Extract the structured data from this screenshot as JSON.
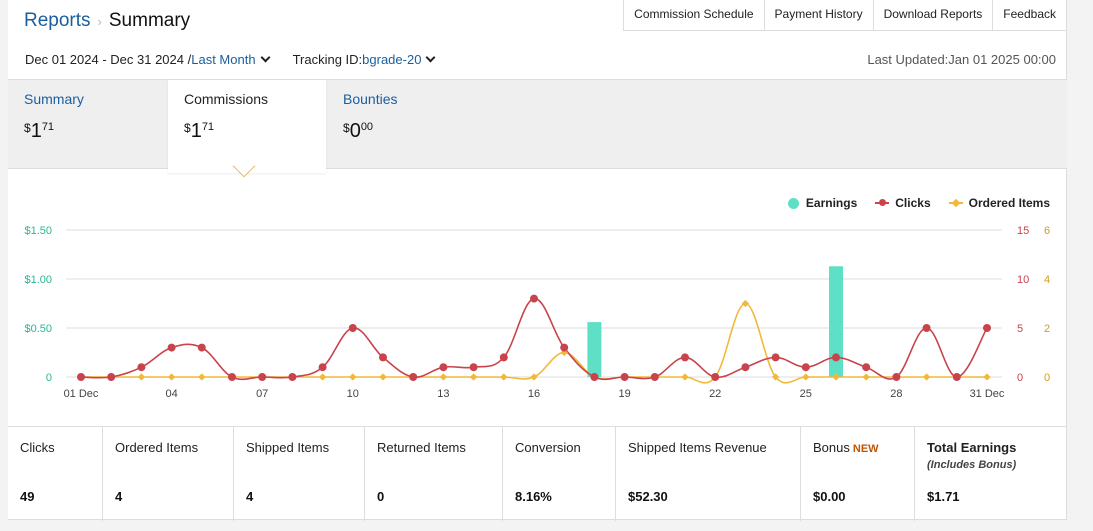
{
  "breadcrumb": {
    "parent": "Reports",
    "current": "Summary"
  },
  "top_nav": [
    "Commission Schedule",
    "Payment History",
    "Download Reports",
    "Feedback"
  ],
  "filters": {
    "date_range": "Dec 01 2024 - Dec 31 2024 /",
    "period": "Last Month",
    "tracking_label": "Tracking ID:",
    "tracking_id": "bgrade-20"
  },
  "last_updated": "Last Updated:Jan 01 2025 00:00",
  "tabs": [
    {
      "label": "Summary",
      "currency": "$",
      "whole": "1",
      "cents": "71",
      "active": false
    },
    {
      "label": "Commissions",
      "currency": "$",
      "whole": "1",
      "cents": "71",
      "active": true
    },
    {
      "label": "Bounties",
      "currency": "$",
      "whole": "0",
      "cents": "00",
      "active": false
    }
  ],
  "legend": [
    "Earnings",
    "Clicks",
    "Ordered Items"
  ],
  "colors": {
    "earnings": "#5de0c5",
    "clicks": "#c9434c",
    "ordered": "#f0b93a",
    "link": "#1a5e9e",
    "bonus_new": "#c45500"
  },
  "chart_data": {
    "type": "bar+line",
    "x": [
      "01 Dec",
      "02",
      "03",
      "04",
      "05",
      "06",
      "07",
      "08",
      "09",
      "10",
      "11",
      "12",
      "13",
      "14",
      "15",
      "16",
      "17",
      "18",
      "19",
      "20",
      "21",
      "22",
      "23",
      "24",
      "25",
      "26",
      "27",
      "28",
      "29",
      "30",
      "31 Dec"
    ],
    "x_tick_labels": [
      "01 Dec",
      "04",
      "07",
      "10",
      "13",
      "16",
      "19",
      "22",
      "25",
      "28",
      "31 Dec"
    ],
    "series": [
      {
        "name": "Earnings",
        "type": "bar",
        "axis": "left",
        "values": [
          0,
          0,
          0,
          0,
          0,
          0,
          0,
          0,
          0,
          0,
          0,
          0,
          0,
          0,
          0,
          0,
          0,
          0.56,
          0,
          0,
          0,
          0,
          0,
          0,
          0,
          1.13,
          0,
          0,
          0,
          0,
          0
        ]
      },
      {
        "name": "Clicks",
        "type": "line",
        "axis": "right-1",
        "values": [
          0,
          0,
          1,
          3,
          3,
          0,
          0,
          0,
          1,
          5,
          2,
          0,
          1,
          1,
          2,
          8,
          3,
          0,
          0,
          0,
          2,
          0,
          1,
          2,
          1,
          2,
          1,
          0,
          5,
          0,
          5
        ]
      },
      {
        "name": "Ordered Items",
        "type": "line",
        "axis": "right-2",
        "values": [
          0,
          0,
          0,
          0,
          0,
          0,
          0,
          0,
          0,
          0,
          0,
          0,
          0,
          0,
          0,
          0,
          1,
          0,
          0,
          0,
          0,
          0,
          3,
          0,
          0,
          0,
          0,
          0,
          0,
          0,
          0
        ]
      }
    ],
    "y_left": {
      "ticks": [
        "0",
        "$0.50",
        "$1.00",
        "$1.50"
      ],
      "range": [
        0,
        1.5
      ]
    },
    "y_right_1": {
      "ticks": [
        "0",
        "5",
        "10",
        "15"
      ],
      "range": [
        0,
        15
      ]
    },
    "y_right_2": {
      "ticks": [
        "0",
        "2",
        "4",
        "6"
      ],
      "range": [
        0,
        6
      ]
    },
    "legend_position": "top-right",
    "grid": true
  },
  "metrics": [
    {
      "label": "Clicks",
      "value": "49"
    },
    {
      "label": "Ordered Items",
      "value": "4"
    },
    {
      "label": "Shipped Items",
      "value": "4"
    },
    {
      "label": "Returned Items",
      "value": "0"
    },
    {
      "label": "Conversion",
      "value": "8.16%"
    },
    {
      "label": "Shipped Items Revenue",
      "value": "$52.30"
    },
    {
      "label": "Bonus",
      "badge": "NEW",
      "value": "$0.00"
    },
    {
      "label": "Total Earnings",
      "sub": "(Includes Bonus)",
      "value": "$1.71"
    }
  ]
}
